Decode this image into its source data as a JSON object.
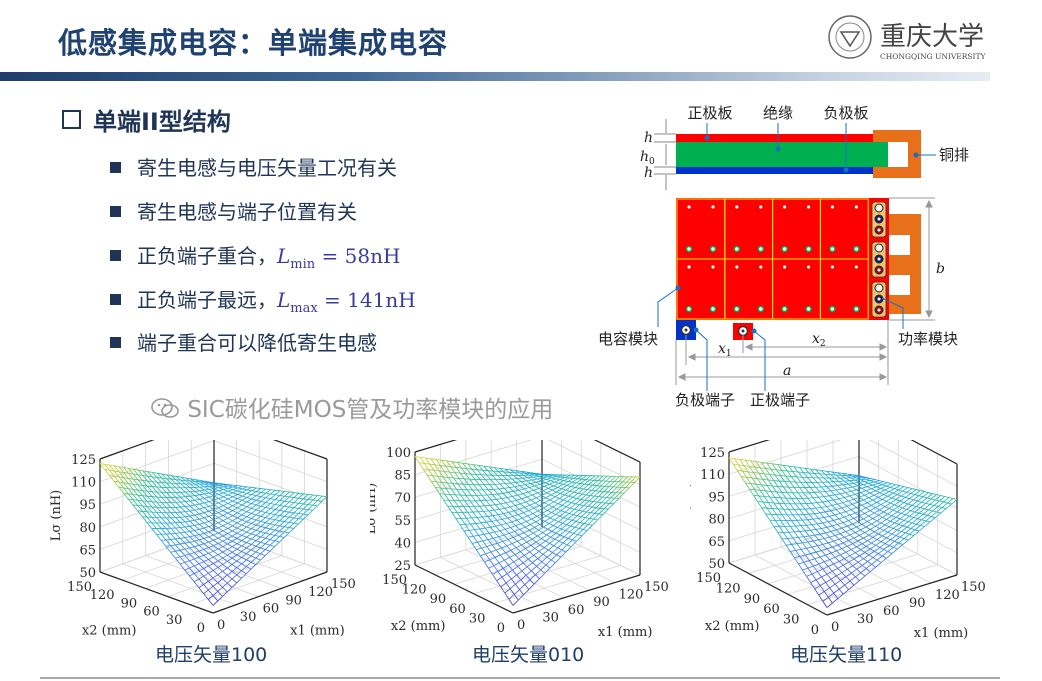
{
  "header": {
    "title": "低感集成电容：单端集成电容",
    "logo": {
      "text_cn": "重庆大学",
      "text_en": "CHONGQING UNIVERSITY"
    }
  },
  "section": {
    "title": "单端II型结构"
  },
  "bullets": [
    {
      "text": "寄生电感与电压矢量工况有关"
    },
    {
      "text": "寄生电感与端子位置有关"
    },
    {
      "text": "正负端子重合，",
      "math_sym": "L",
      "math_sub": "min",
      "math_eq": " = 58nH"
    },
    {
      "text": "正负端子最远，",
      "math_sym": "L",
      "math_sub": "max",
      "math_eq": " = 141nH"
    },
    {
      "text": "端子重合可以降低寄生电感"
    }
  ],
  "diagram": {
    "labels": {
      "positive_plate": "正极板",
      "insulation": "绝缘",
      "negative_plate": "负极板",
      "copper_bar": "铜排",
      "capacitor_module": "电容模块",
      "power_module": "功率模块",
      "negative_terminal": "负极端子",
      "positive_terminal": "正极端子"
    },
    "dims": {
      "h": "h",
      "h0": "h",
      "h0_sub": "0",
      "b": "b",
      "a": "a",
      "x1": "x",
      "x1_sub": "1",
      "x2": "x",
      "x2_sub": "2"
    },
    "colors": {
      "positive": "#ff0000",
      "insulation": "#00b050",
      "negative": "#0033cc",
      "copper": "#e8701a",
      "grid": "#ffe600"
    }
  },
  "watermark": {
    "text": "SIC碳化硅MOS管及功率模块的应用",
    "icon": "wechat-icon"
  },
  "chart_data": [
    {
      "type": "surface3d",
      "caption": "电压矢量100",
      "zlabel": "Lσ (nH)",
      "xlabel": "x1 (mm)",
      "ylabel": "x2 (mm)",
      "x_ticks": [
        0,
        30,
        60,
        90,
        120,
        150
      ],
      "y_ticks": [
        0,
        30,
        60,
        90,
        120,
        150
      ],
      "z_ticks": [
        50,
        65,
        80,
        95,
        110,
        125
      ],
      "zlim": [
        50,
        125
      ],
      "corner_values": {
        "x1_0_x2_0": 55,
        "x1_150_x2_0": 100,
        "x1_0_x2_150": 122,
        "x1_150_x2_150": 82
      },
      "colormap": "parula",
      "grid": true
    },
    {
      "type": "surface3d",
      "caption": "电压矢量010",
      "zlabel": "Lσ (nH)",
      "xlabel": "x1 (mm)",
      "ylabel": "x2 (mm)",
      "x_ticks": [
        0,
        30,
        60,
        90,
        120,
        150
      ],
      "y_ticks": [
        0,
        30,
        60,
        90,
        120,
        150
      ],
      "z_ticks": [
        25,
        40,
        55,
        70,
        85,
        100
      ],
      "zlim": [
        25,
        100
      ],
      "corner_values": {
        "x1_0_x2_0": 30,
        "x1_150_x2_0": 90,
        "x1_0_x2_150": 97,
        "x1_150_x2_150": 60
      },
      "colormap": "parula",
      "grid": true
    },
    {
      "type": "surface3d",
      "caption": "电压矢量110",
      "zlabel": "Lσ (nH)",
      "xlabel": "x1 (mm)",
      "ylabel": "x2 (mm)",
      "x_ticks": [
        0,
        30,
        60,
        90,
        120,
        150
      ],
      "y_ticks": [
        0,
        30,
        60,
        90,
        120,
        150
      ],
      "z_ticks": [
        50,
        65,
        80,
        95,
        110,
        125
      ],
      "zlim": [
        50,
        125
      ],
      "corner_values": {
        "x1_0_x2_0": 55,
        "x1_150_x2_0": 101,
        "x1_0_x2_150": 121,
        "x1_150_x2_150": 82
      },
      "colormap": "parula",
      "grid": true
    }
  ]
}
